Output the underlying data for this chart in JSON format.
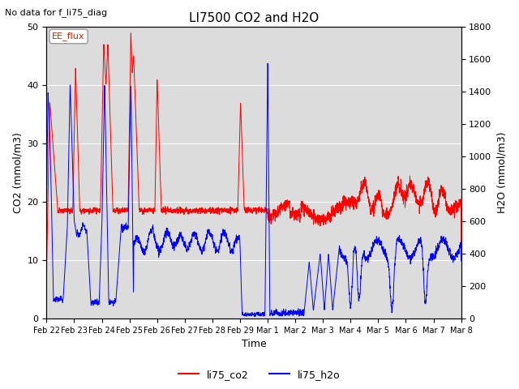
{
  "title": "LI7500 CO2 and H2O",
  "subtitle": "No data for f_li75_diag",
  "xlabel": "Time",
  "ylabel_left": "CO2 (mmol/m3)",
  "ylabel_right": "H2O (mmol/m3)",
  "ylim_left": [
    0,
    50
  ],
  "ylim_right": [
    0,
    1800
  ],
  "annotation_box": "EE_flux",
  "legend_entries": [
    "li75_co2",
    "li75_h2o"
  ],
  "legend_colors": [
    "red",
    "blue"
  ],
  "co2_color": "red",
  "h2o_color": "blue",
  "background_color": "#dcdcdc",
  "grid_color": "#ffffff",
  "x_tick_labels": [
    "Feb 22",
    "Feb 23",
    "Feb 24",
    "Feb 25",
    "Feb 26",
    "Feb 27",
    "Feb 28",
    "Feb 29",
    "Mar 1",
    "Mar 2",
    "Mar 3",
    "Mar 4",
    "Mar 5",
    "Mar 6",
    "Mar 7",
    "Mar 8"
  ],
  "num_points": 5000,
  "figsize": [
    6.4,
    4.8
  ],
  "dpi": 100
}
